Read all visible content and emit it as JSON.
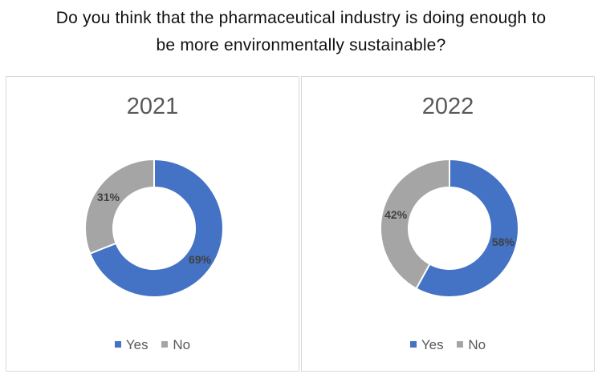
{
  "question": {
    "line1": "Do you think that the pharmaceutical industry is doing enough to",
    "line2": "be more environmentally sustainable?"
  },
  "colors": {
    "yes": "#4472C4",
    "no": "#A5A5A5"
  },
  "legend": [
    "Yes",
    "No"
  ],
  "chart_data": [
    {
      "type": "pie",
      "title": "2021",
      "categories": [
        "Yes",
        "No"
      ],
      "values": [
        69,
        31
      ],
      "labels": [
        "69%",
        "31%"
      ],
      "legend_position": "bottom",
      "style": "donut"
    },
    {
      "type": "pie",
      "title": "2022",
      "categories": [
        "Yes",
        "No"
      ],
      "values": [
        58,
        42
      ],
      "labels": [
        "58%",
        "42%"
      ],
      "legend_position": "bottom",
      "style": "donut"
    }
  ]
}
